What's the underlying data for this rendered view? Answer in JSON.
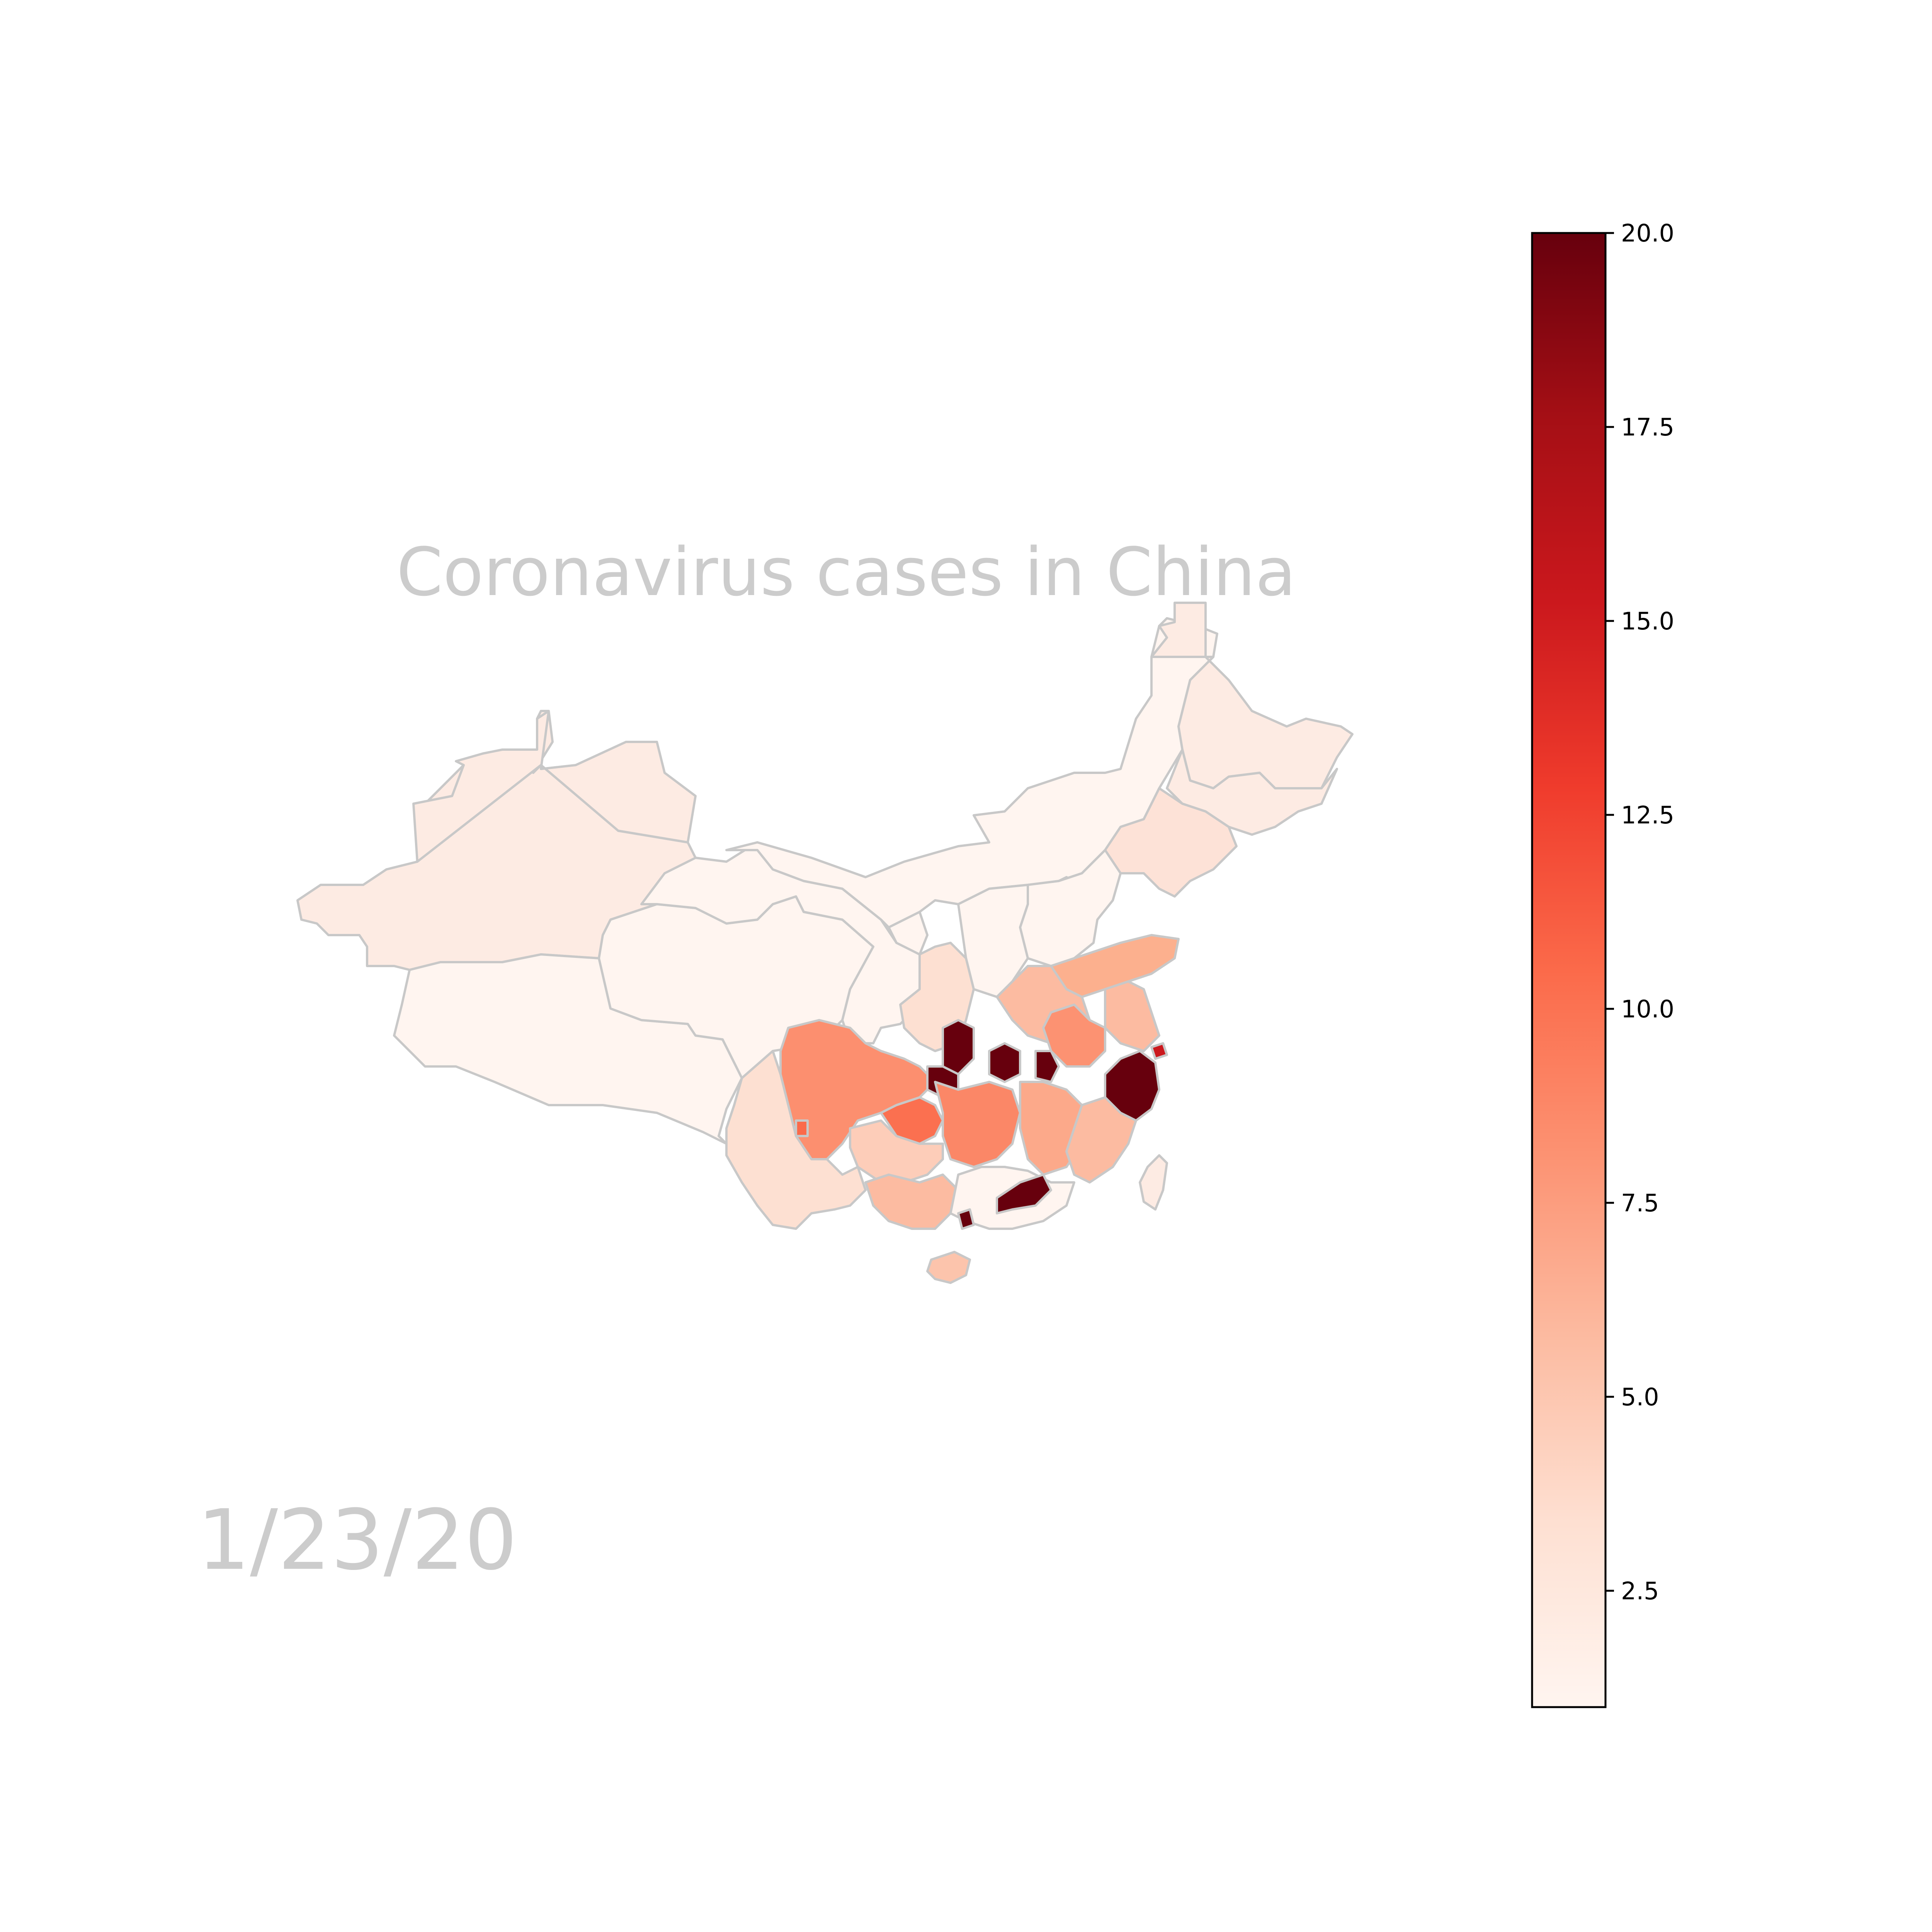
{
  "title": "Coronavirus cases in China",
  "date": "1/23/20",
  "colormap": {
    "name": "Reds",
    "vmin": 1,
    "vmax": 20,
    "stops": [
      "#fff5f0",
      "#fee0d2",
      "#fcbba1",
      "#fc9272",
      "#fb6a4a",
      "#ef3b2c",
      "#cb181d",
      "#a50f15",
      "#67000d"
    ]
  },
  "colorbar_ticks": [
    "2.5",
    "5.0",
    "7.5",
    "10.0",
    "12.5",
    "15.0",
    "17.5",
    "20.0"
  ],
  "colorbar_tick_values": [
    2.5,
    5.0,
    7.5,
    10.0,
    12.5,
    15.0,
    17.5,
    20.0
  ],
  "border_color": "#c8c8c8"
}
